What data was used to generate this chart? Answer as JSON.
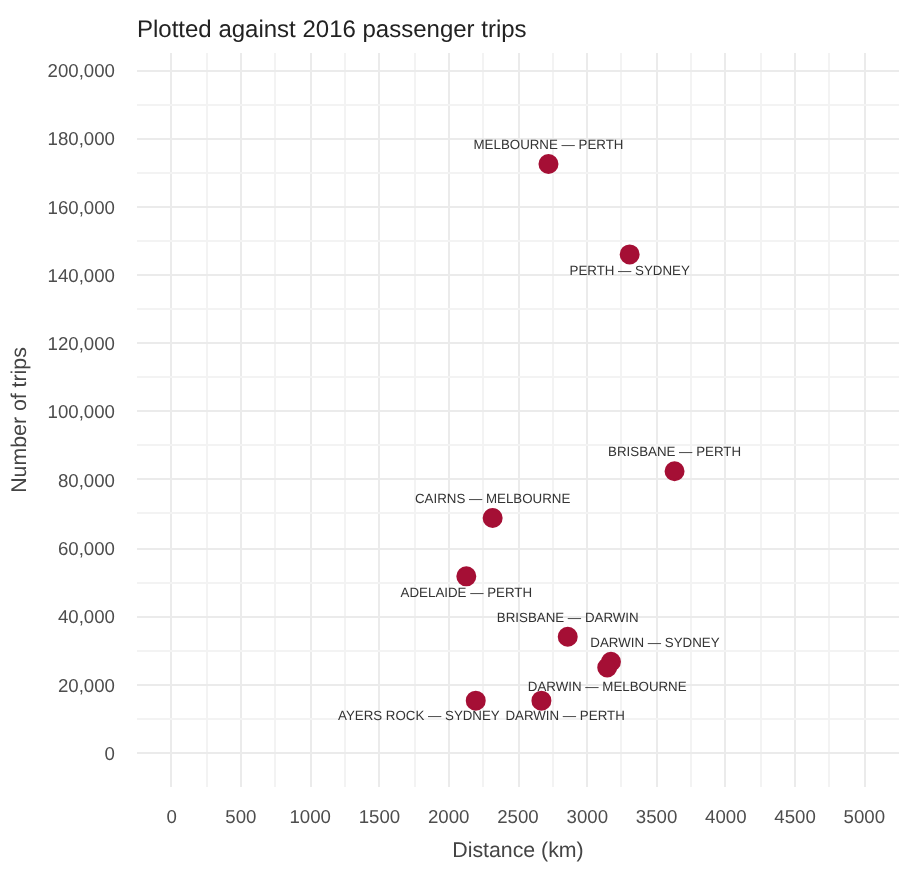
{
  "chart_data": {
    "type": "scatter",
    "subtitle": "Plotted against 2016 passenger trips",
    "xlabel": "Distance (km)",
    "ylabel": "Number of trips",
    "series": [
      {
        "color": "#a50f35",
        "x": [
          2720,
          3306,
          3630,
          2317,
          2127,
          2859,
          3171,
          3144,
          2195,
          2669
        ],
        "values": [
          172500,
          146000,
          82500,
          68800,
          51700,
          34000,
          26700,
          25000,
          15300,
          15300
        ]
      }
    ],
    "annotations": [
      {
        "text": "MELBOURNE — PERTH",
        "x": 2720,
        "y": 172500
      },
      {
        "text": "PERTH — SYDNEY",
        "x": 3306,
        "y": 146000
      },
      {
        "text": "BRISBANE — PERTH",
        "x": 3630,
        "y": 82500
      },
      {
        "text": "CAIRNS — MELBOURNE",
        "x": 2317,
        "y": 68800
      },
      {
        "text": "ADELAIDE — PERTH",
        "x": 2127,
        "y": 51700
      },
      {
        "text": "BRISBANE — DARWIN",
        "x": 2859,
        "y": 34000
      },
      {
        "text": "DARWIN — SYDNEY",
        "x": 3171,
        "y": 26700
      },
      {
        "text": "DARWIN — MELBOURNE",
        "x": 3144,
        "y": 25000
      },
      {
        "text": "AYERS ROCK — SYDNEY",
        "x": 2195,
        "y": 15300
      },
      {
        "text": "DARWIN — PERTH",
        "x": 2669,
        "y": 15300
      }
    ],
    "xlim": [
      -250,
      5250
    ],
    "ylim": [
      -10000,
      205000
    ],
    "xticks": [
      0,
      500,
      1000,
      1500,
      2000,
      2500,
      3000,
      3500,
      4000,
      4500,
      5000
    ],
    "yticks": [
      {
        "value": 0,
        "label": "0"
      },
      {
        "value": 20000,
        "label": "20,000"
      },
      {
        "value": 40000,
        "label": "40,000"
      },
      {
        "value": 60000,
        "label": "60,000"
      },
      {
        "value": 80000,
        "label": "80,000"
      },
      {
        "value": 100000,
        "label": "100,000"
      },
      {
        "value": 120000,
        "label": "120,000"
      },
      {
        "value": 140000,
        "label": "140,000"
      },
      {
        "value": 160000,
        "label": "160,000"
      },
      {
        "value": 180000,
        "label": "180,000"
      },
      {
        "value": 200000,
        "label": "200,000"
      }
    ],
    "grid": true,
    "marker": "circle"
  }
}
